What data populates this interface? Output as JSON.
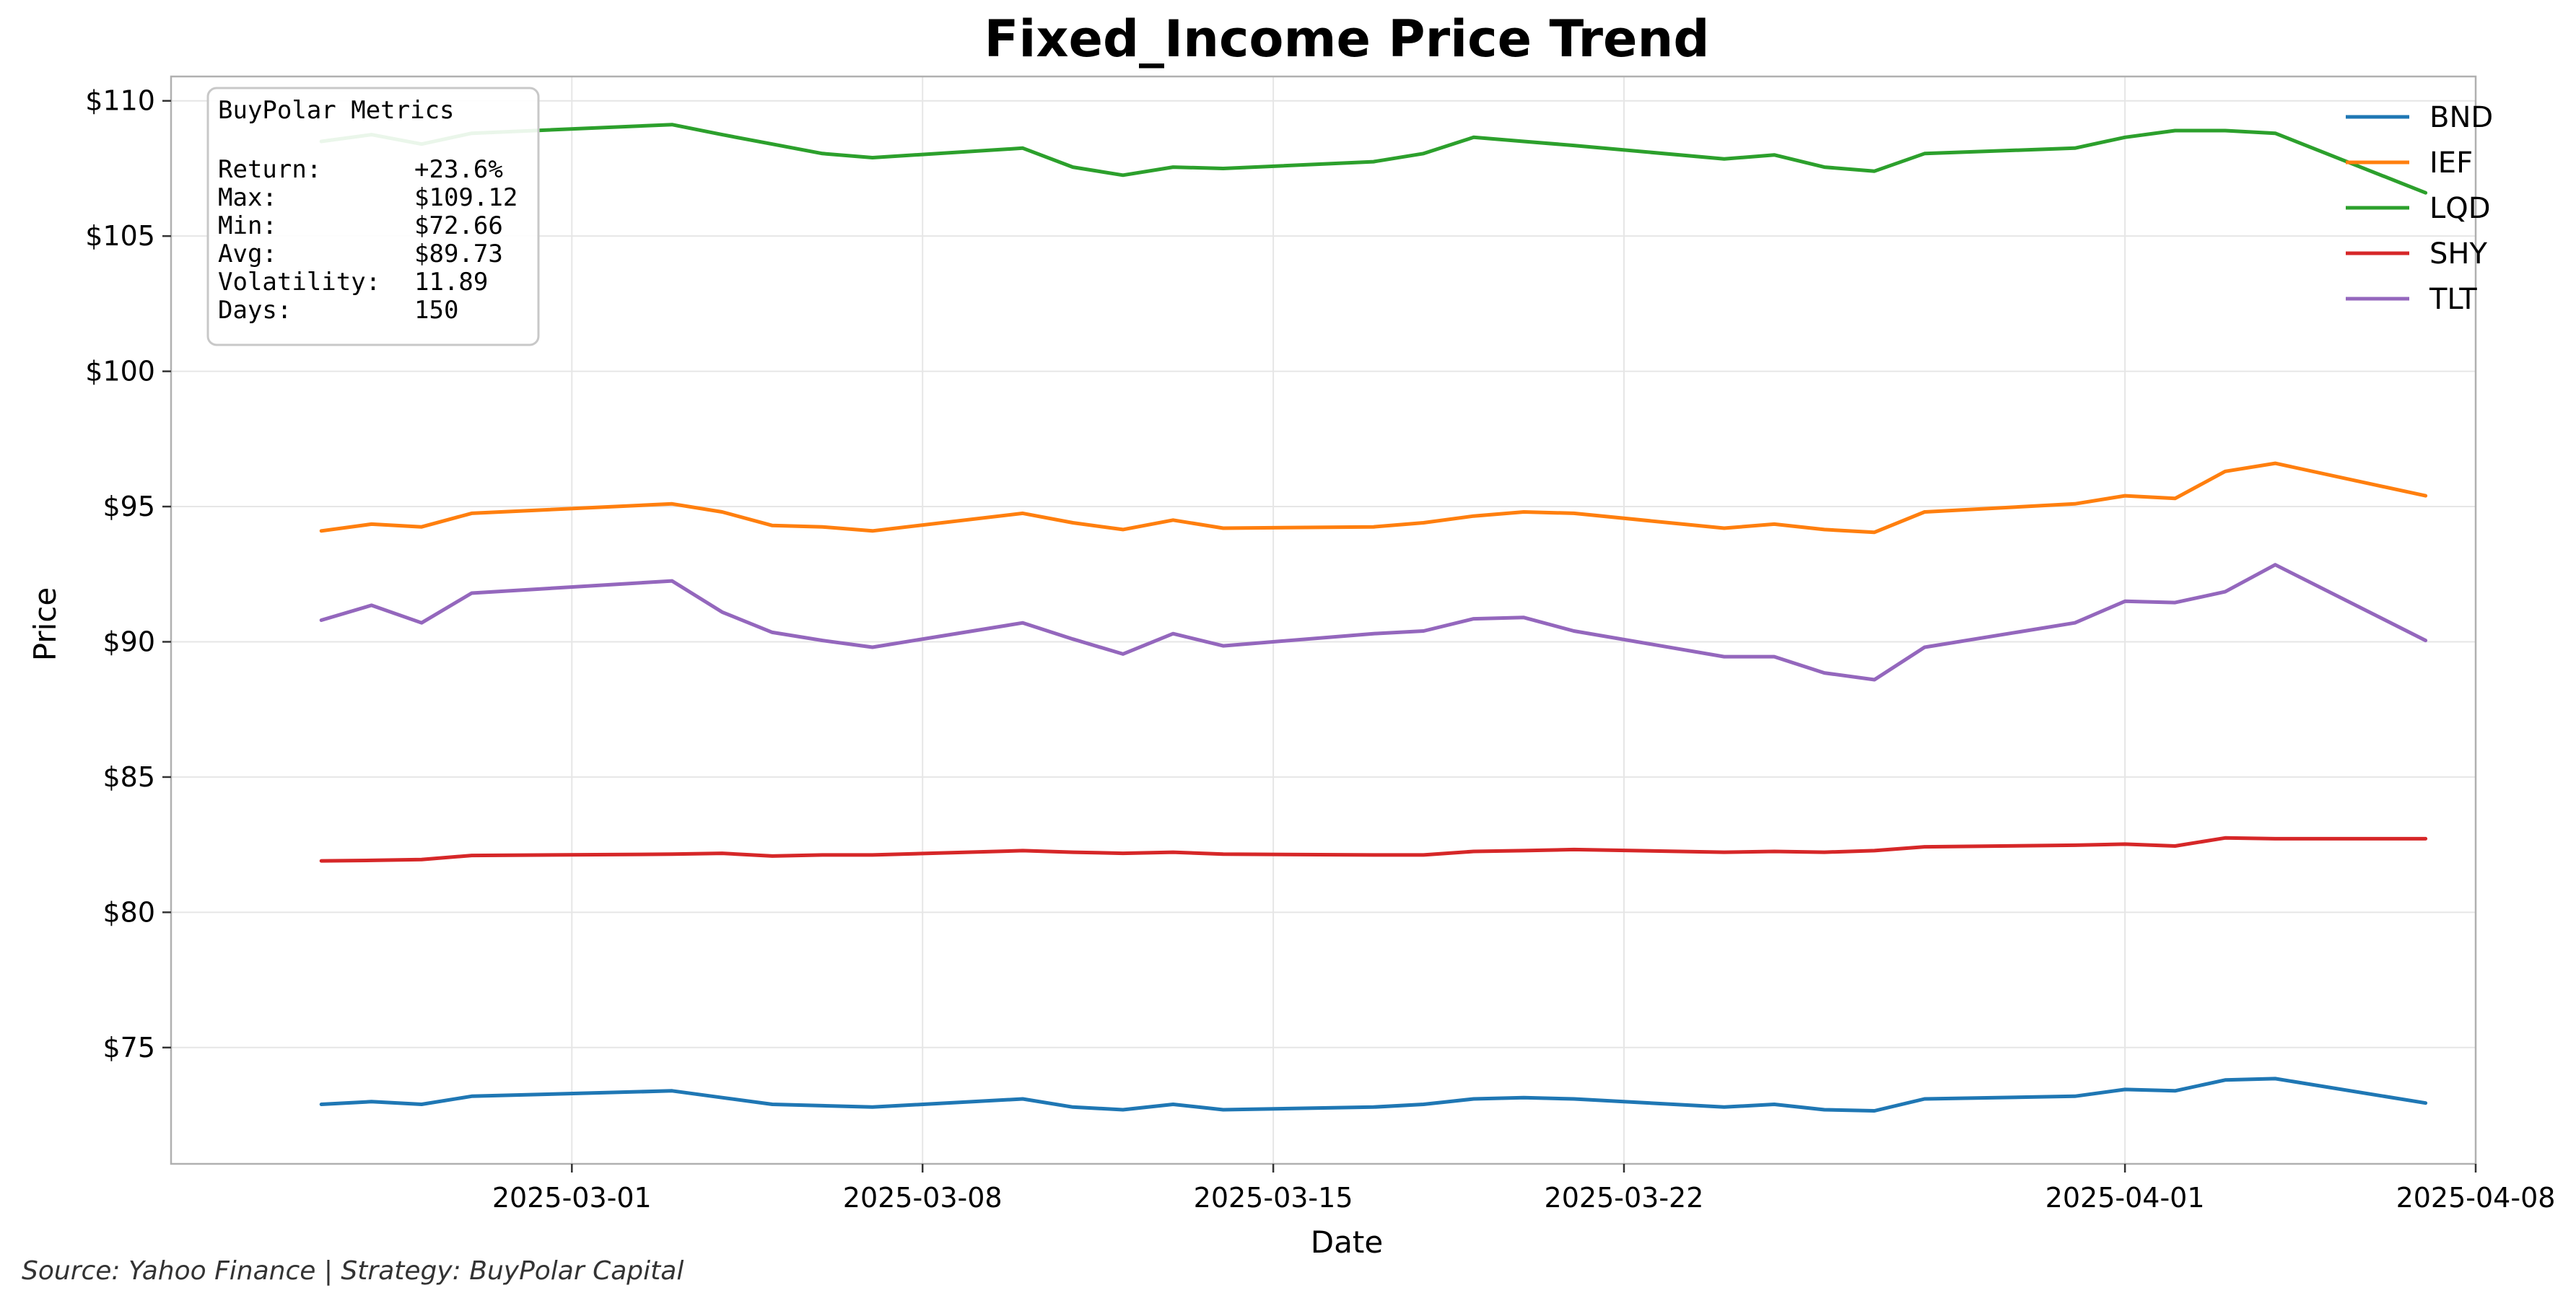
{
  "chart_data": {
    "type": "line",
    "title": "Fixed_Income Price Trend",
    "xlabel": "Date",
    "ylabel": "Price",
    "y_tick_format": "$",
    "ylim": [
      70.7,
      110.9
    ],
    "xlim": [
      "2025-02-21",
      "2025-04-08"
    ],
    "y_ticks": [
      75,
      80,
      85,
      90,
      95,
      100,
      105,
      110
    ],
    "y_tick_labels": [
      "$75",
      "$80",
      "$85",
      "$90",
      "$95",
      "$100",
      "$105",
      "$110"
    ],
    "x_ticks": [
      "2025-03-01",
      "2025-03-08",
      "2025-03-15",
      "2025-03-22",
      "2025-04-01",
      "2025-04-08"
    ],
    "grid": true,
    "legend_position": "top-right",
    "x": [
      "2025-02-24",
      "2025-02-25",
      "2025-02-26",
      "2025-02-27",
      "2025-03-03",
      "2025-03-04",
      "2025-03-05",
      "2025-03-06",
      "2025-03-07",
      "2025-03-10",
      "2025-03-11",
      "2025-03-12",
      "2025-03-13",
      "2025-03-14",
      "2025-03-17",
      "2025-03-18",
      "2025-03-19",
      "2025-03-20",
      "2025-03-21",
      "2025-03-24",
      "2025-03-25",
      "2025-03-26",
      "2025-03-27",
      "2025-03-28",
      "2025-03-31",
      "2025-04-01",
      "2025-04-02",
      "2025-04-03",
      "2025-04-04",
      "2025-04-07"
    ],
    "series": [
      {
        "name": "BND",
        "color": "#1f77b4",
        "values": [
          72.9,
          73.0,
          72.9,
          73.2,
          73.4,
          73.15,
          72.9,
          72.85,
          72.8,
          73.1,
          72.8,
          72.7,
          72.9,
          72.7,
          72.8,
          72.9,
          73.1,
          73.15,
          73.1,
          72.8,
          72.9,
          72.7,
          72.66,
          73.1,
          73.2,
          73.45,
          73.4,
          73.8,
          73.85,
          72.95
        ]
      },
      {
        "name": "IEF",
        "color": "#ff7f0e",
        "values": [
          94.1,
          94.35,
          94.25,
          94.75,
          95.1,
          94.8,
          94.3,
          94.25,
          94.1,
          94.75,
          94.4,
          94.15,
          94.5,
          94.2,
          94.25,
          94.4,
          94.65,
          94.8,
          94.75,
          94.2,
          94.35,
          94.15,
          94.05,
          94.8,
          95.1,
          95.4,
          95.3,
          96.3,
          96.6,
          95.4
        ]
      },
      {
        "name": "LQD",
        "color": "#2ca02c",
        "values": [
          108.5,
          108.75,
          108.4,
          108.8,
          109.12,
          108.75,
          108.4,
          108.05,
          107.9,
          108.25,
          107.55,
          107.25,
          107.55,
          107.5,
          107.75,
          108.05,
          108.65,
          108.5,
          108.35,
          107.85,
          108.0,
          107.55,
          107.4,
          108.05,
          108.25,
          108.65,
          108.9,
          108.9,
          108.8,
          106.6
        ]
      },
      {
        "name": "SHY",
        "color": "#d62728",
        "values": [
          81.9,
          81.92,
          81.95,
          82.1,
          82.15,
          82.18,
          82.08,
          82.12,
          82.12,
          82.28,
          82.22,
          82.18,
          82.22,
          82.15,
          82.12,
          82.12,
          82.25,
          82.28,
          82.32,
          82.22,
          82.25,
          82.22,
          82.28,
          82.42,
          82.48,
          82.52,
          82.45,
          82.75,
          82.72,
          82.72
        ]
      },
      {
        "name": "TLT",
        "color": "#9467bd",
        "values": [
          90.8,
          91.35,
          90.7,
          91.8,
          92.25,
          91.1,
          90.35,
          90.05,
          89.8,
          90.7,
          90.1,
          89.55,
          90.3,
          89.85,
          90.3,
          90.4,
          90.85,
          90.9,
          90.4,
          89.45,
          89.45,
          88.85,
          88.6,
          89.8,
          90.7,
          91.5,
          91.45,
          91.85,
          92.85,
          90.05
        ]
      }
    ]
  },
  "metrics_box": {
    "title": "BuyPolar Metrics",
    "rows": [
      {
        "label": "Return:",
        "value": "+23.6%"
      },
      {
        "label": "Max:",
        "value": "$109.12"
      },
      {
        "label": "Min:",
        "value": "$72.66"
      },
      {
        "label": "Avg:",
        "value": "$89.73"
      },
      {
        "label": "Volatility:",
        "value": "11.89"
      },
      {
        "label": "Days:",
        "value": "150"
      }
    ]
  },
  "footer": {
    "source": "Source: Yahoo Finance | Strategy: BuyPolar Capital"
  }
}
